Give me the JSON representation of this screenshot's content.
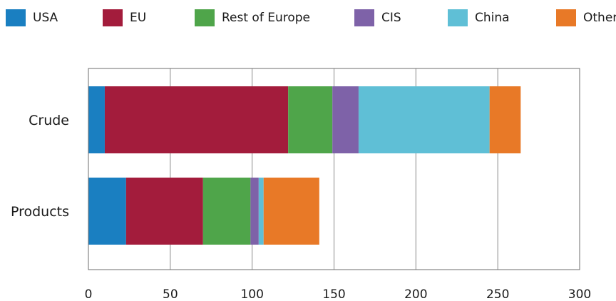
{
  "chart_data": {
    "type": "bar",
    "orientation": "horizontal",
    "stacked": true,
    "categories": [
      "Crude",
      "Products"
    ],
    "series": [
      {
        "name": "USA",
        "color": "#1a7fc1",
        "values": [
          10,
          23
        ]
      },
      {
        "name": "EU",
        "color": "#a31c3c",
        "values": [
          112,
          47
        ]
      },
      {
        "name": "Rest of Europe",
        "color": "#4fa54a",
        "values": [
          27,
          29
        ]
      },
      {
        "name": "CIS",
        "color": "#7e62a8",
        "values": [
          16,
          5
        ]
      },
      {
        "name": "China",
        "color": "#5fbfd6",
        "values": [
          80,
          3
        ]
      },
      {
        "name": "Other",
        "color": "#e87927",
        "values": [
          19,
          34
        ]
      }
    ],
    "xlim": [
      0,
      300
    ],
    "xticks": [
      "0",
      "50",
      "100",
      "150",
      "200",
      "250",
      "300"
    ],
    "grid": "vertical",
    "legend": "top"
  }
}
